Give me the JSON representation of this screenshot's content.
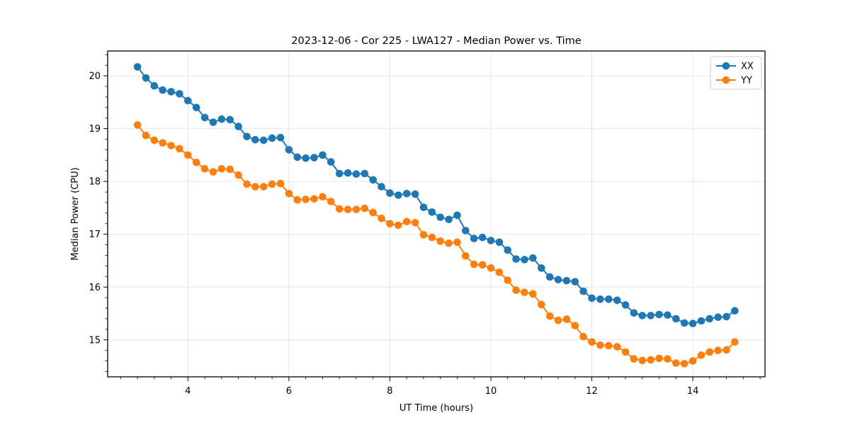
{
  "figure_title": "2023-12-06 - Cor 225 - LWA127 - Median Power vs. Time",
  "chart_data": {
    "type": "line",
    "title": "2023-12-06 - Cor 225 - LWA127 - Median Power vs. Time",
    "xlabel": "UT Time (hours)",
    "ylabel": "Median Power (CPU)",
    "xlim": [
      2.41,
      15.43
    ],
    "ylim": [
      14.3,
      20.47
    ],
    "x_ticks": [
      4,
      6,
      8,
      10,
      12,
      14
    ],
    "y_ticks": [
      15,
      16,
      17,
      18,
      19,
      20
    ],
    "x_minor_step": 0.33333,
    "y_minor_step": 0.2,
    "grid": true,
    "grid_color": "#e6e6e6",
    "legend_position": "upper right",
    "legend_entries": [
      "XX",
      "YY"
    ],
    "x": [
      3.0,
      3.167,
      3.333,
      3.5,
      3.667,
      3.833,
      4.0,
      4.167,
      4.333,
      4.5,
      4.667,
      4.833,
      5.0,
      5.167,
      5.333,
      5.5,
      5.667,
      5.833,
      6.0,
      6.167,
      6.333,
      6.5,
      6.667,
      6.833,
      7.0,
      7.167,
      7.333,
      7.5,
      7.667,
      7.833,
      8.0,
      8.167,
      8.333,
      8.5,
      8.667,
      8.833,
      9.0,
      9.167,
      9.333,
      9.5,
      9.667,
      9.833,
      10.0,
      10.167,
      10.333,
      10.5,
      10.667,
      10.833,
      11.0,
      11.167,
      11.333,
      11.5,
      11.667,
      11.833,
      12.0,
      12.167,
      12.333,
      12.5,
      12.667,
      12.833,
      13.0,
      13.167,
      13.333,
      13.5,
      13.667,
      13.833,
      14.0,
      14.167,
      14.333,
      14.5,
      14.667,
      14.833
    ],
    "series": [
      {
        "name": "XX",
        "color": "#1f77b4",
        "values": [
          20.17,
          19.96,
          19.81,
          19.73,
          19.7,
          19.66,
          19.53,
          19.4,
          19.21,
          19.12,
          19.18,
          19.17,
          19.04,
          18.85,
          18.79,
          18.78,
          18.82,
          18.83,
          18.6,
          18.46,
          18.44,
          18.45,
          18.5,
          18.37,
          18.15,
          18.16,
          18.14,
          18.15,
          18.03,
          17.9,
          17.78,
          17.74,
          17.77,
          17.76,
          17.51,
          17.42,
          17.32,
          17.28,
          17.36,
          17.07,
          16.92,
          16.94,
          16.88,
          16.85,
          16.7,
          16.53,
          16.52,
          16.55,
          16.36,
          16.19,
          16.14,
          16.12,
          16.1,
          15.92,
          15.79,
          15.77,
          15.77,
          15.75,
          15.66,
          15.51,
          15.46,
          15.46,
          15.48,
          15.47,
          15.4,
          15.32,
          15.31,
          15.36,
          15.4,
          15.43,
          15.44,
          15.55
        ]
      },
      {
        "name": "YY",
        "color": "#ff7f0e",
        "values": [
          19.07,
          18.87,
          18.78,
          18.73,
          18.68,
          18.62,
          18.5,
          18.36,
          18.24,
          18.18,
          18.24,
          18.23,
          18.12,
          17.95,
          17.9,
          17.9,
          17.95,
          17.96,
          17.77,
          17.65,
          17.66,
          17.67,
          17.71,
          17.62,
          17.48,
          17.47,
          17.47,
          17.49,
          17.41,
          17.3,
          17.2,
          17.17,
          17.24,
          17.22,
          16.99,
          16.94,
          16.87,
          16.83,
          16.85,
          16.59,
          16.43,
          16.42,
          16.36,
          16.28,
          16.13,
          15.94,
          15.9,
          15.87,
          15.67,
          15.45,
          15.37,
          15.39,
          15.27,
          15.06,
          14.96,
          14.9,
          14.89,
          14.87,
          14.77,
          14.64,
          14.61,
          14.62,
          14.65,
          14.64,
          14.56,
          14.55,
          14.6,
          14.71,
          14.77,
          14.8,
          14.81,
          14.96
        ]
      }
    ]
  }
}
